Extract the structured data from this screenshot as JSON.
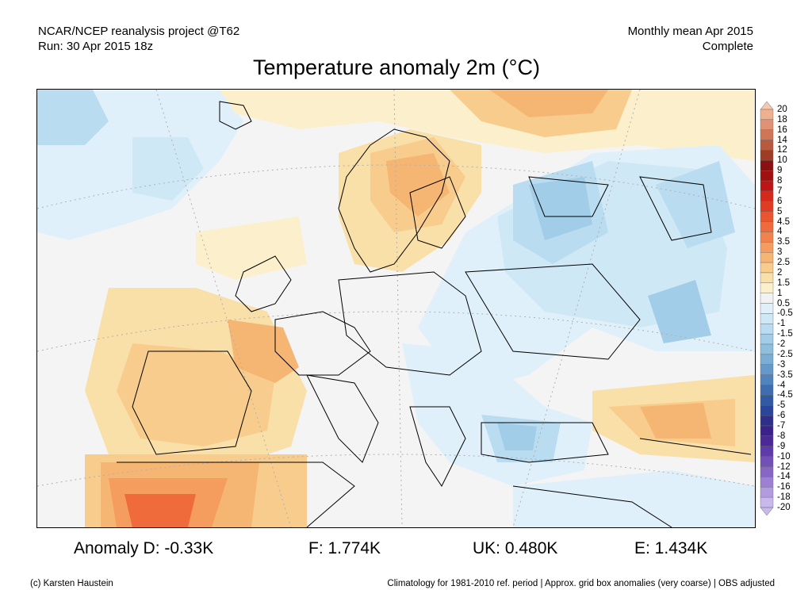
{
  "header": {
    "left_line1": "NCAR/NCEP reanalysis project @T62",
    "left_line2": "Run: 30 Apr 2015 18z",
    "right_line1": "Monthly mean Apr 2015",
    "right_line2": "Complete"
  },
  "title": "Temperature anomaly 2m (°C)",
  "colorbar": {
    "labels": [
      "20",
      "18",
      "16",
      "14",
      "12",
      "10",
      "9",
      "8",
      "7",
      "6",
      "5",
      "4.5",
      "4",
      "3.5",
      "3",
      "2.5",
      "2",
      "1.5",
      "1",
      "0.5",
      "-0.5",
      "-1",
      "-1.5",
      "-2",
      "-2.5",
      "-3",
      "-3.5",
      "-4",
      "-4.5",
      "-5",
      "-6",
      "-7",
      "-8",
      "-9",
      "-10",
      "-12",
      "-14",
      "-16",
      "-18",
      "-20"
    ],
    "colors": [
      "#f7c8b0",
      "#efb08e",
      "#e09374",
      "#cf7657",
      "#b85a3d",
      "#9e3d25",
      "#8a1111",
      "#a20f0f",
      "#bd1515",
      "#d42a1a",
      "#e03c22",
      "#e9552f",
      "#ef6b3c",
      "#f2824b",
      "#f49d5f",
      "#f6b673",
      "#f8cc8c",
      "#f9dfa8",
      "#fbefcc",
      "#f2f2f2",
      "#e0f0fa",
      "#cfe8f6",
      "#b9dcf0",
      "#a2cde8",
      "#8ebfdf",
      "#7aaed5",
      "#6599c9",
      "#5183bd",
      "#3f6db1",
      "#3159a4",
      "#2a4599",
      "#2e2f8a",
      "#3a228a",
      "#4b2a98",
      "#5e3ba8",
      "#7250b8",
      "#8766c6",
      "#9d80d3",
      "#b39be0",
      "#c9b8ec"
    ]
  },
  "stats": {
    "d": "Anomaly D: -0.33K",
    "f": "F: 1.774K",
    "uk": "UK: 0.480K",
    "e": "E: 1.434K"
  },
  "footer": {
    "left": "(c) Karsten Haustein",
    "right": "Climatology for 1981-2010 ref. period | Approx. grid box anomalies (very coarse) | OBS adjusted"
  },
  "map_colors": {
    "neutral": "#f4f4f4",
    "warm1": "#fbefcc",
    "warm2": "#f9dfa8",
    "warm3": "#f8cc8c",
    "warm4": "#f6b673",
    "warm5": "#f49d5f",
    "warm6": "#ef6b3c",
    "cool1": "#e0f0fa",
    "cool2": "#cfe8f6",
    "cool3": "#b9dcf0",
    "cool4": "#a2cde8",
    "cool5": "#8ebfdf",
    "cool6": "#7aaed5"
  }
}
